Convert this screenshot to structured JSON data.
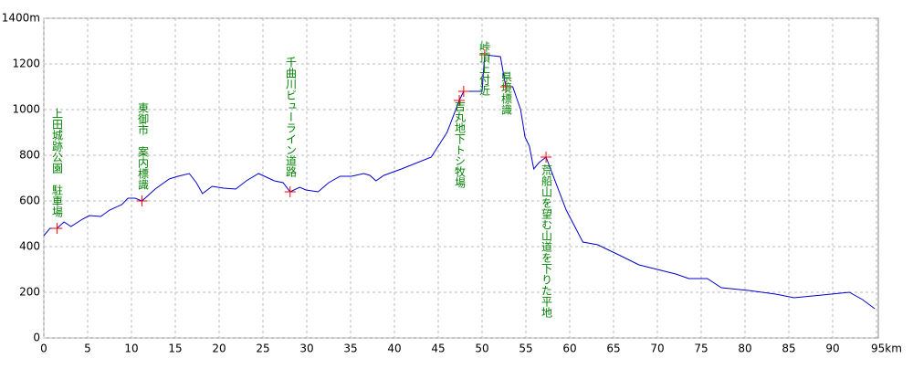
{
  "chart_data": {
    "type": "line",
    "x": [
      0,
      0.7,
      1.5,
      2.3,
      3.1,
      4.4,
      5.2,
      6.5,
      7.5,
      8.9,
      9.6,
      10.4,
      11.2,
      12.7,
      14.3,
      15.3,
      16.6,
      17.4,
      18.1,
      19.2,
      20.5,
      21.9,
      23.1,
      24.5,
      25.4,
      26.3,
      27.3,
      28.1,
      29.2,
      29.9,
      31.3,
      32.5,
      33.8,
      35.1,
      36.5,
      37.2,
      37.9,
      38.8,
      40.8,
      44.2,
      46.0,
      47.4,
      47.9,
      50.0,
      50.3,
      52.1,
      52.7,
      53.5,
      54.4,
      54.9,
      55.4,
      55.9,
      56.5,
      57.3,
      59.6,
      61.5,
      63.2,
      65.8,
      67.9,
      70.0,
      72.1,
      73.6,
      75.7,
      77.3,
      80.4,
      83.5,
      85.6,
      88.8,
      91.9,
      93.4,
      94.8
    ],
    "series": [
      {
        "color": "#0000cc",
        "values": [
          448,
          480,
          480,
          508,
          488,
          520,
          536,
          532,
          560,
          584,
          612,
          612,
          600,
          652,
          696,
          708,
          720,
          680,
          632,
          664,
          656,
          652,
          688,
          720,
          704,
          688,
          680,
          640,
          660,
          648,
          640,
          680,
          708,
          708,
          720,
          712,
          688,
          712,
          740,
          792,
          900,
          1040,
          1080,
          1080,
          1240,
          1232,
          1100,
          1100,
          1000,
          880,
          840,
          740,
          768,
          792,
          560,
          420,
          408,
          360,
          320,
          300,
          280,
          260,
          260,
          220,
          208,
          192,
          176,
          188,
          200,
          168,
          128
        ]
      }
    ],
    "markers": {
      "color": "#ff0000",
      "label_color": "#008000",
      "x": [
        1.5,
        11.2,
        28.1,
        47.4,
        47.9,
        50.3,
        52.7,
        57.3
      ],
      "values": [
        480,
        600,
        640,
        1040,
        1080,
        1240,
        1100,
        792
      ],
      "labels": [
        "上田城跡公園　駐車場",
        "東御市　案内標識",
        "千曲川ビューライン道路",
        "吉丸地下トシ牧場",
        null,
        "峠頂上付近",
        "県境標識",
        "荒船山を望む山道を下りた平地"
      ]
    },
    "xlim": [
      0,
      95
    ],
    "xticks": [
      0,
      5,
      10,
      15,
      20,
      25,
      30,
      35,
      40,
      45,
      50,
      55,
      60,
      65,
      70,
      75,
      80,
      85,
      90,
      {
        "value": 95,
        "label": "95km"
      }
    ],
    "ylim": [
      0,
      1400
    ],
    "yticks": [
      0,
      200,
      400,
      600,
      800,
      1000,
      1200,
      {
        "value": 1400,
        "label": "1400m"
      }
    ],
    "grid": true
  }
}
